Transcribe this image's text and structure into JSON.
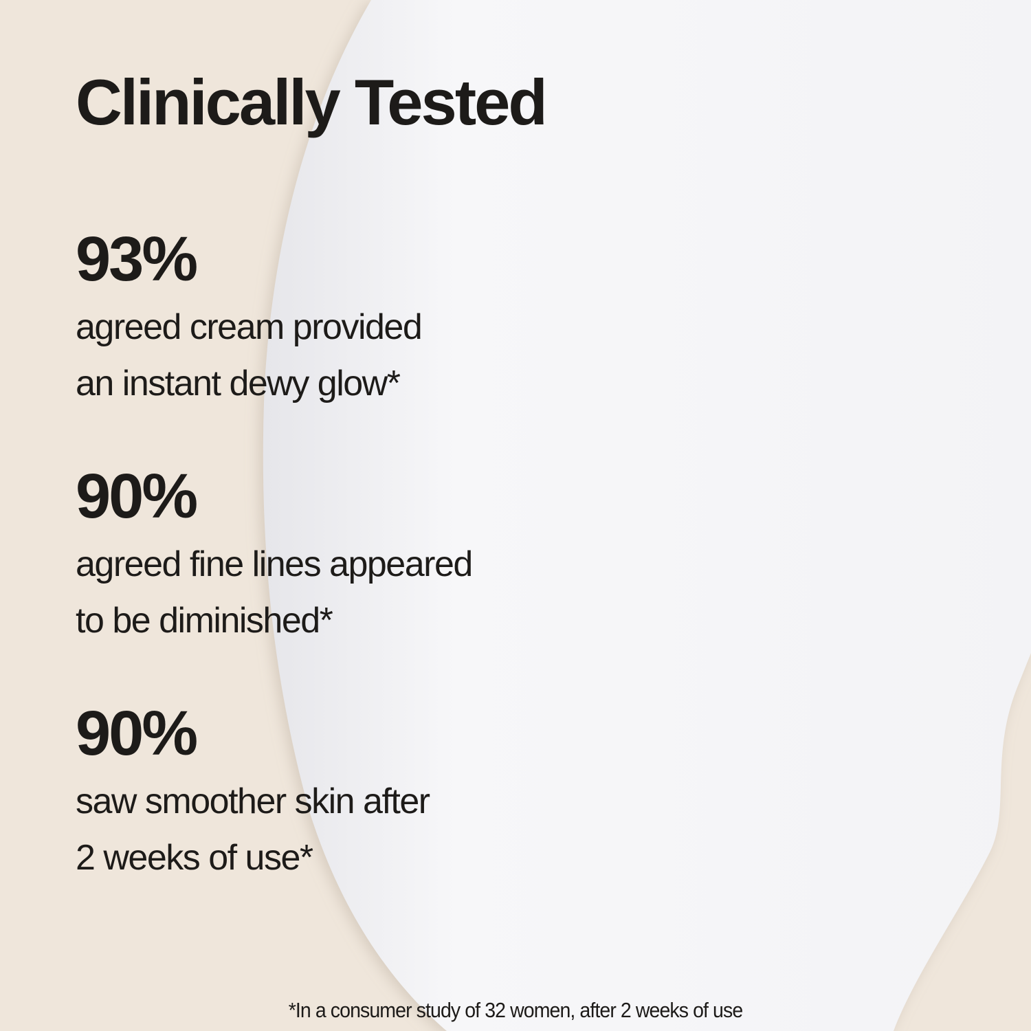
{
  "title": "Clinically Tested",
  "stats": [
    {
      "value": "93%",
      "line1": "agreed cream provided",
      "line2": "an instant dewy glow*"
    },
    {
      "value": "90%",
      "line1": "agreed fine lines appeared",
      "line2": "to be diminished*"
    },
    {
      "value": "90%",
      "line1": "saw smoother skin after",
      "line2": "2 weeks of use*"
    }
  ],
  "footnote": "*In a consumer study of 32 women, after 2 weeks of use",
  "colors": {
    "background": "#efe6db",
    "cream": "#f6f6f8",
    "text": "#1d1b19"
  }
}
